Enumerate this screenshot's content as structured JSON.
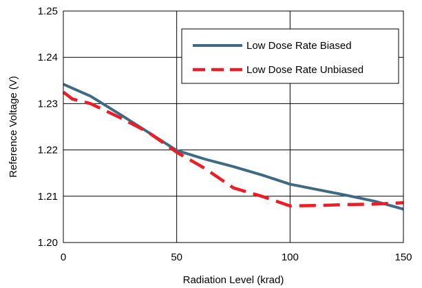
{
  "chart_data": {
    "type": "line",
    "title": "",
    "xlabel": "Radiation Level (krad)",
    "ylabel": "Reference Voltage (V)",
    "xlim": [
      0,
      150
    ],
    "ylim": [
      1.2,
      1.25
    ],
    "xticks": [
      0,
      50,
      100,
      150
    ],
    "xtick_labels": [
      "0",
      "50",
      "100",
      "150"
    ],
    "yticks": [
      1.2,
      1.21,
      1.22,
      1.23,
      1.24,
      1.25
    ],
    "ytick_labels": [
      "1.20",
      "1.21",
      "1.22",
      "1.23",
      "1.24",
      "1.25"
    ],
    "grid": true,
    "legend_position": "top-right",
    "series": [
      {
        "name": "Low Dose Rate Biased",
        "color": "#3d6b85",
        "style": "solid",
        "x": [
          0,
          12,
          25,
          37.5,
          50,
          62.5,
          75,
          87.5,
          100,
          112.5,
          125,
          137.5,
          150
        ],
        "y": [
          1.2342,
          1.2316,
          1.2277,
          1.2238,
          1.2199,
          1.218,
          1.2164,
          1.2146,
          1.2126,
          1.2114,
          1.2102,
          1.2089,
          1.2072
        ]
      },
      {
        "name": "Low Dose Rate Unbiased",
        "color": "#ee1c24",
        "style": "dashed",
        "x": [
          0,
          4,
          12,
          25,
          37.5,
          50,
          62.5,
          75,
          87.5,
          100,
          112.5,
          125,
          137.5,
          150
        ],
        "y": [
          1.2325,
          1.231,
          1.23,
          1.227,
          1.2238,
          1.2195,
          1.216,
          1.2118,
          1.21,
          1.2079,
          1.208,
          1.2082,
          1.2083,
          1.2086
        ]
      }
    ]
  }
}
